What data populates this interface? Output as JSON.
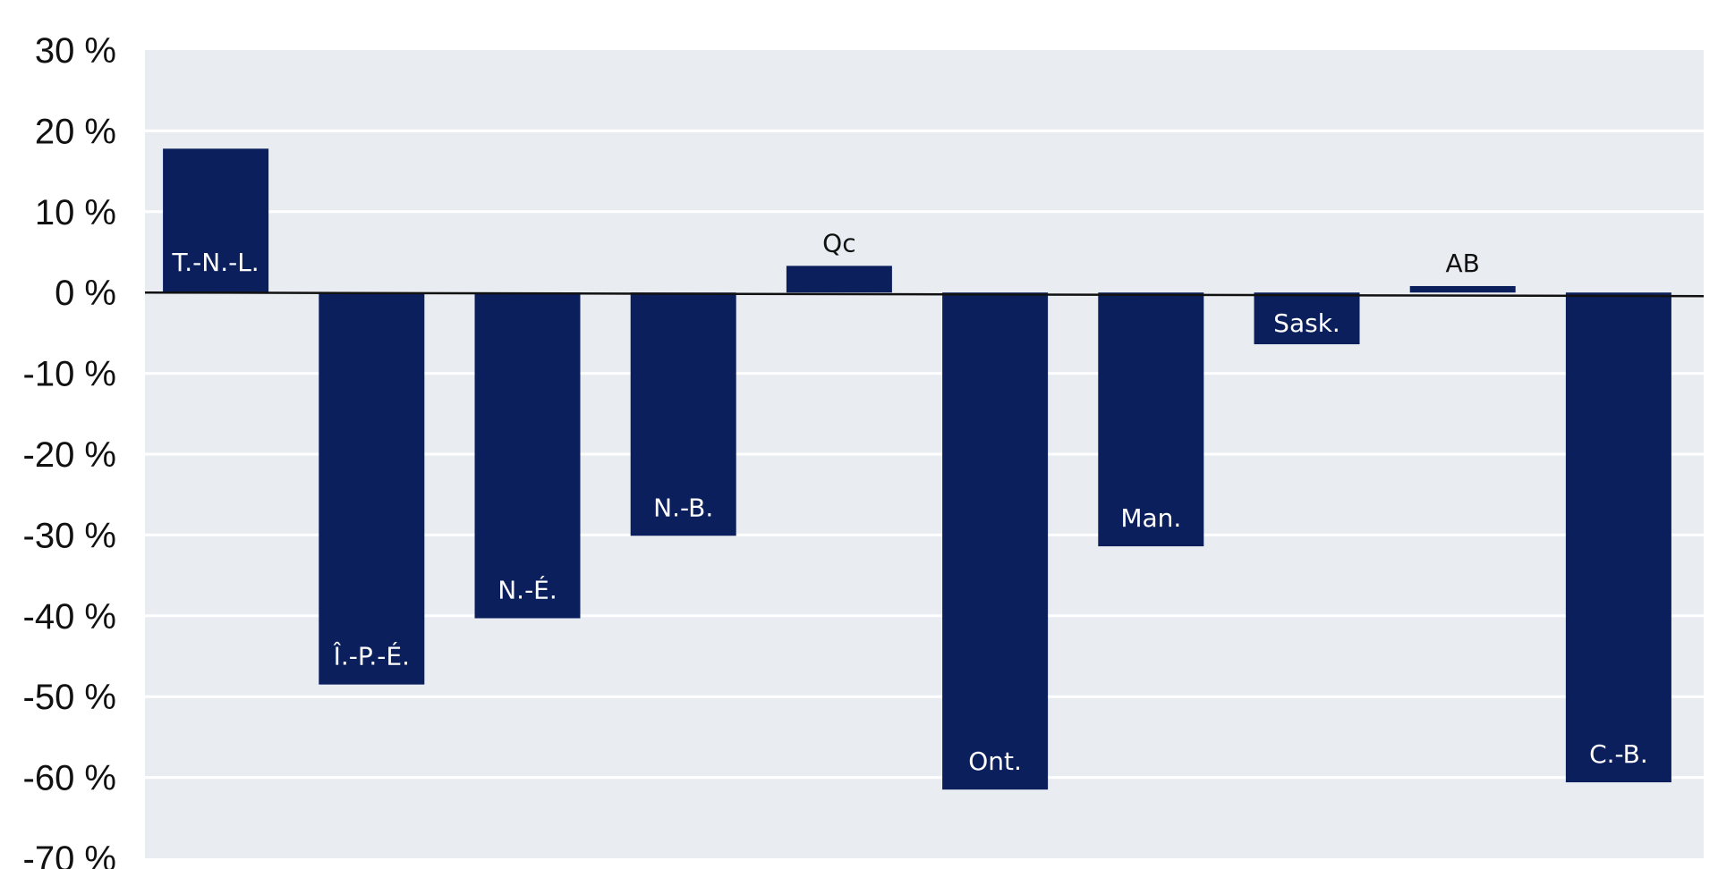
{
  "chart_data": {
    "type": "bar",
    "title": "",
    "xlabel": "",
    "ylabel": "",
    "ylim": [
      -70,
      30
    ],
    "yticks": [
      30,
      20,
      10,
      0,
      -10,
      -20,
      -30,
      -40,
      -50,
      -60,
      -70
    ],
    "ytick_labels": [
      "30 %",
      "20 %",
      "10 %",
      "0 %",
      "-10 %",
      "-20 %",
      "-30 %",
      "-40 %",
      "-50 %",
      "-60 %",
      "-70 %"
    ],
    "grid": true,
    "legend": "none",
    "categories": [
      "T.-N.-L.",
      "Î.-P.-É.",
      "N.-É.",
      "N.-B.",
      "Qc",
      "Ont.",
      "Man.",
      "Sask.",
      "AB",
      "C.-B."
    ],
    "values": [
      17.8,
      -48.5,
      -40.3,
      -30.1,
      3.3,
      -61.5,
      -31.4,
      -6.4,
      0.8,
      -60.6
    ],
    "colors": {
      "bar": "#0b1f5c",
      "plot_background": "#e9edf2",
      "grid": "#ffffff",
      "zero_line": "#111111",
      "label_inside": "#ffffff",
      "label_outside": "#111111"
    }
  }
}
